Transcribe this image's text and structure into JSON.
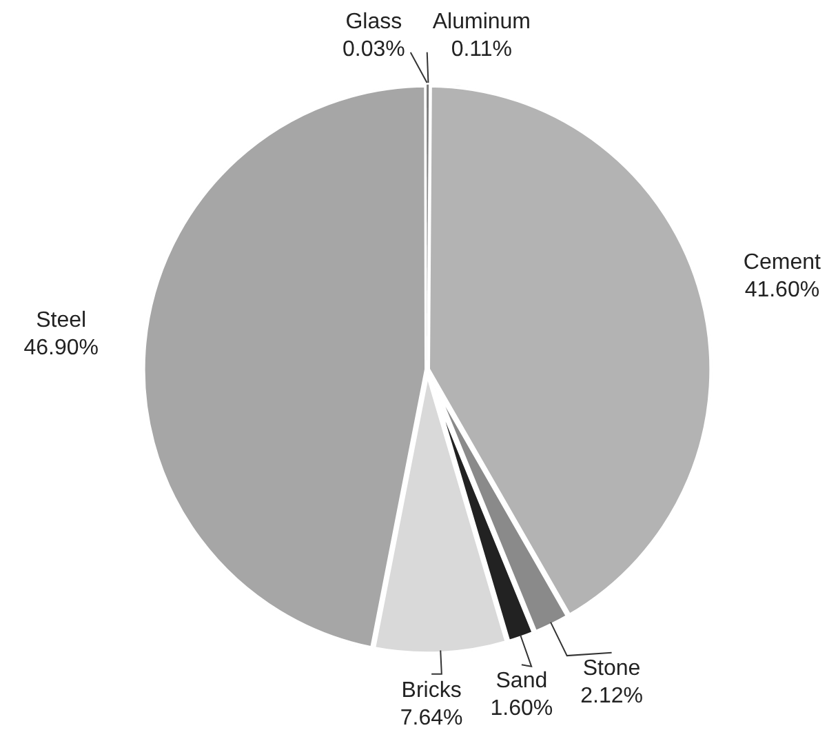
{
  "chart_data": {
    "type": "pie",
    "categories": [
      "Aluminum",
      "Cement",
      "Stone",
      "Sand",
      "Bricks",
      "Steel",
      "Glass"
    ],
    "values": [
      0.11,
      41.6,
      2.12,
      1.6,
      7.64,
      46.9,
      0.03
    ],
    "value_labels": [
      "0.11%",
      "41.60%",
      "2.12%",
      "1.60%",
      "7.64%",
      "46.90%",
      "0.03%"
    ],
    "colors": [
      "#7a7a7a",
      "#b3b3b3",
      "#8a8a8a",
      "#222222",
      "#d9d9d9",
      "#a6a6a6",
      "#5a5a5a"
    ],
    "legend": false
  }
}
